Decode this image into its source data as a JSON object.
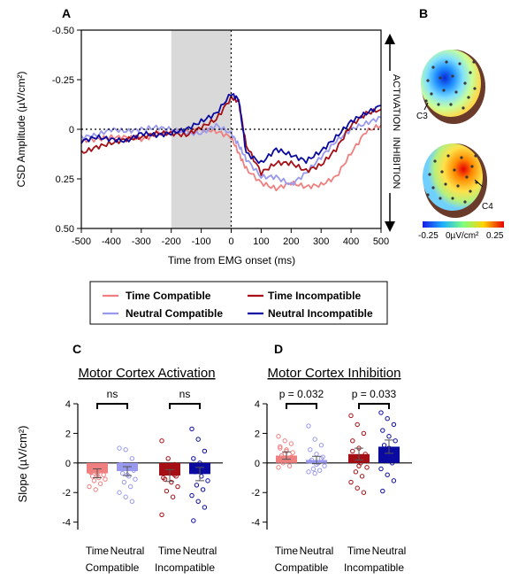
{
  "colors": {
    "time_compatible": "#f08080",
    "neutral_compatible": "#9999ee",
    "time_incompatible": "#a50f15",
    "neutral_incompatible": "#0a0aa0",
    "shade": "#d9d9d9"
  },
  "panels": {
    "a": "A",
    "b": "B",
    "c": "C",
    "d": "D"
  },
  "legend": {
    "time_compatible": "Time Compatible",
    "time_incompatible": "Time Incompatible",
    "neutral_compatible": "Neutral Compatible",
    "neutral_incompatible": "Neutral Incompatible"
  },
  "topo": {
    "label_c3": "C3",
    "label_c4": "C4",
    "colorbar_min": "-0.25",
    "colorbar_mid": "0µV/cm²",
    "colorbar_max": "0.25"
  },
  "chart_data": [
    {
      "id": "A",
      "type": "line",
      "xlabel": "Time from EMG onset (ms)",
      "ylabel": "CSD Amplitude (µV/cm²)",
      "xlim": [
        -500,
        500
      ],
      "ylim": [
        -0.5,
        0.5
      ],
      "y_inverted": true,
      "x_ticks": [
        -500,
        -400,
        -300,
        -200,
        -100,
        0,
        100,
        200,
        300,
        400,
        500
      ],
      "y_ticks": [
        -0.5,
        -0.25,
        0,
        0.25,
        0.5
      ],
      "y_tick_labels": [
        "-0.50",
        "-0.25",
        "0",
        "0.25",
        "0.50"
      ],
      "shaded_interval": [
        -200,
        0
      ],
      "side_labels": {
        "top": "ACTIVATION",
        "bottom": "INHIBITION"
      },
      "x": [
        -500,
        -450,
        -400,
        -350,
        -300,
        -250,
        -200,
        -150,
        -100,
        -50,
        0,
        25,
        50,
        100,
        150,
        200,
        250,
        300,
        350,
        400,
        450,
        500
      ],
      "series": [
        {
          "name": "Time Compatible",
          "key": "time_compatible",
          "values": [
            0.06,
            0.05,
            0.04,
            0.04,
            0.05,
            0.03,
            0.01,
            0.01,
            0.0,
            0.01,
            0.04,
            0.12,
            0.2,
            0.27,
            0.3,
            0.27,
            0.29,
            0.28,
            0.24,
            0.12,
            0.01,
            -0.02
          ]
        },
        {
          "name": "Neutral Compatible",
          "key": "neutral_compatible",
          "values": [
            0.04,
            0.03,
            0.0,
            0.01,
            0.0,
            -0.01,
            0.0,
            0.02,
            0.02,
            -0.02,
            0.02,
            0.08,
            0.15,
            0.24,
            0.24,
            0.28,
            0.22,
            0.14,
            0.06,
            0.0,
            -0.03,
            -0.06
          ]
        },
        {
          "name": "Time Incompatible",
          "key": "time_incompatible",
          "values": [
            0.12,
            0.09,
            0.07,
            0.05,
            0.04,
            0.02,
            0.02,
            0.03,
            -0.01,
            -0.05,
            -0.16,
            -0.14,
            0.08,
            0.22,
            0.17,
            0.17,
            0.21,
            0.18,
            0.1,
            -0.02,
            -0.08,
            -0.1
          ]
        },
        {
          "name": "Neutral Incompatible",
          "key": "neutral_incompatible",
          "values": [
            0.06,
            0.04,
            0.05,
            0.06,
            0.02,
            0.03,
            0.02,
            0.0,
            -0.04,
            -0.08,
            -0.18,
            -0.15,
            0.12,
            0.17,
            0.1,
            0.13,
            0.16,
            0.11,
            0.04,
            -0.04,
            -0.08,
            -0.12
          ]
        }
      ]
    },
    {
      "id": "C",
      "type": "bar",
      "title": "Motor Cortex Activation",
      "ylabel": "Slope (µV/cm²)",
      "ylim": [
        -4.5,
        4
      ],
      "y_ticks": [
        -4,
        -2,
        0,
        2,
        4
      ],
      "categories": [
        "Time",
        "Neutral",
        "Time",
        "Neutral"
      ],
      "groups": [
        "Compatible",
        "Incompatible"
      ],
      "values": [
        -0.7,
        -0.55,
        -0.85,
        -0.75
      ],
      "sem": [
        0.3,
        0.3,
        0.4,
        0.45
      ],
      "color_keys": [
        "time_compatible",
        "neutral_compatible",
        "time_incompatible",
        "neutral_incompatible"
      ],
      "significance": [
        "ns",
        "ns"
      ],
      "points": [
        [
          -0.3,
          -0.4,
          -0.5,
          -0.6,
          -0.7,
          -0.8,
          -0.9,
          -1.0,
          -1.1,
          -1.2,
          -1.4,
          -1.6,
          -1.8,
          -0.2,
          -0.65,
          -0.85
        ],
        [
          1.0,
          0.9,
          0.3,
          -0.1,
          -0.3,
          -0.5,
          -0.7,
          -0.9,
          -1.1,
          -1.3,
          -1.6,
          -2.0,
          -2.3,
          -2.6,
          -0.4,
          -0.8
        ],
        [
          1.5,
          0.3,
          -0.1,
          -0.4,
          -0.7,
          -0.9,
          -1.1,
          -1.3,
          -1.6,
          -1.9,
          -2.3,
          -3.5,
          -0.5,
          -0.8,
          -1.0,
          -0.2
        ],
        [
          2.3,
          1.6,
          0.8,
          0.3,
          0.0,
          -0.3,
          -0.6,
          -0.9,
          -1.2,
          -1.5,
          -1.8,
          -2.2,
          -2.6,
          -3.0,
          -3.9,
          -0.5
        ]
      ]
    },
    {
      "id": "D",
      "type": "bar",
      "title": "Motor Cortex Inhibition",
      "ylabel": "",
      "ylim": [
        -4.5,
        4
      ],
      "y_ticks": [
        -4,
        -2,
        0,
        2,
        4
      ],
      "categories": [
        "Time",
        "Neutral",
        "Time",
        "Neutral"
      ],
      "groups": [
        "Compatible",
        "Incompatible"
      ],
      "values": [
        0.5,
        0.2,
        0.6,
        1.1
      ],
      "sem": [
        0.25,
        0.25,
        0.4,
        0.45
      ],
      "color_keys": [
        "time_compatible",
        "neutral_compatible",
        "time_incompatible",
        "neutral_incompatible"
      ],
      "significance": [
        "p = 0.032",
        "p = 0.033"
      ],
      "points": [
        [
          1.8,
          1.5,
          1.3,
          1.1,
          0.9,
          0.7,
          0.5,
          0.3,
          0.2,
          0.0,
          -0.2,
          -0.3,
          0.6,
          0.4,
          1.0,
          0.8
        ],
        [
          2.5,
          1.6,
          1.2,
          0.9,
          0.6,
          0.4,
          0.2,
          0.0,
          -0.2,
          -0.4,
          -0.5,
          -0.6,
          -0.7,
          0.3,
          0.1,
          -0.1
        ],
        [
          3.2,
          2.6,
          2.0,
          1.5,
          1.0,
          0.6,
          0.3,
          0.0,
          -0.3,
          -0.6,
          -0.9,
          -1.3,
          -1.7,
          -2.0,
          0.8,
          -0.2
        ],
        [
          3.4,
          3.0,
          2.6,
          2.2,
          1.8,
          1.5,
          1.2,
          0.9,
          0.6,
          0.3,
          0.0,
          -0.4,
          -0.8,
          -1.2,
          -1.9,
          1.0
        ]
      ]
    }
  ]
}
